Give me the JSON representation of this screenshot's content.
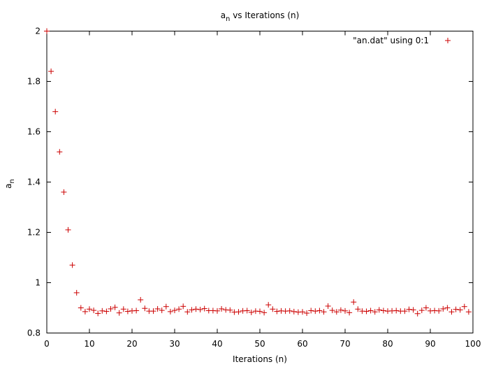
{
  "chart_data": {
    "type": "scatter",
    "title": {
      "base": "a",
      "subscript": "n",
      "rest": " vs Iterations (n)"
    },
    "xlabel": "Iterations (n)",
    "ylabel": {
      "base": "a",
      "subscript": "n"
    },
    "xlim": [
      0,
      100
    ],
    "ylim": [
      0.8,
      2
    ],
    "xticks": [
      0,
      10,
      20,
      30,
      40,
      50,
      60,
      70,
      80,
      90,
      100
    ],
    "yticks": [
      0.8,
      1,
      1.2,
      1.4,
      1.6,
      1.8,
      2
    ],
    "xtick_labels": [
      "0",
      "10",
      "20",
      "30",
      "40",
      "50",
      "60",
      "70",
      "80",
      "90",
      "100"
    ],
    "ytick_labels": [
      "0.8",
      "1",
      "1.2",
      "1.4",
      "1.6",
      "1.8",
      "2"
    ],
    "grid": false,
    "legend_position": "top-right",
    "series": [
      {
        "name": "\"an.dat\" using 0:1",
        "marker": "plus",
        "color": "#cc0000",
        "x": [
          0,
          1,
          2,
          3,
          4,
          5,
          6,
          7,
          8,
          9,
          10,
          11,
          12,
          13,
          14,
          15,
          16,
          17,
          18,
          19,
          20,
          21,
          22,
          23,
          24,
          25,
          26,
          27,
          28,
          29,
          30,
          31,
          32,
          33,
          34,
          35,
          36,
          37,
          38,
          39,
          40,
          41,
          42,
          43,
          44,
          45,
          46,
          47,
          48,
          49,
          50,
          51,
          52,
          53,
          54,
          55,
          56,
          57,
          58,
          59,
          60,
          61,
          62,
          63,
          64,
          65,
          66,
          67,
          68,
          69,
          70,
          71,
          72,
          73,
          74,
          75,
          76,
          77,
          78,
          79,
          80,
          81,
          82,
          83,
          84,
          85,
          86,
          87,
          88,
          89,
          90,
          91,
          92,
          93,
          94,
          95,
          96,
          97,
          98,
          99
        ],
        "y": [
          2,
          1.84,
          1.68,
          1.52,
          1.36,
          1.21,
          1.07,
          0.96,
          0.9,
          0.885,
          0.895,
          0.89,
          0.878,
          0.888,
          0.886,
          0.896,
          0.902,
          0.88,
          0.895,
          0.886,
          0.888,
          0.889,
          0.932,
          0.898,
          0.887,
          0.887,
          0.896,
          0.89,
          0.905,
          0.885,
          0.89,
          0.895,
          0.906,
          0.884,
          0.892,
          0.895,
          0.893,
          0.897,
          0.889,
          0.889,
          0.888,
          0.896,
          0.892,
          0.891,
          0.883,
          0.884,
          0.888,
          0.889,
          0.882,
          0.887,
          0.886,
          0.881,
          0.912,
          0.895,
          0.886,
          0.888,
          0.887,
          0.888,
          0.885,
          0.883,
          0.884,
          0.879,
          0.889,
          0.887,
          0.889,
          0.884,
          0.907,
          0.89,
          0.884,
          0.891,
          0.888,
          0.881,
          0.923,
          0.895,
          0.887,
          0.886,
          0.889,
          0.884,
          0.892,
          0.889,
          0.887,
          0.888,
          0.889,
          0.887,
          0.887,
          0.894,
          0.892,
          0.877,
          0.89,
          0.9,
          0.888,
          0.889,
          0.888,
          0.896,
          0.9,
          0.884,
          0.894,
          0.892,
          0.905,
          0.884
        ]
      }
    ]
  }
}
